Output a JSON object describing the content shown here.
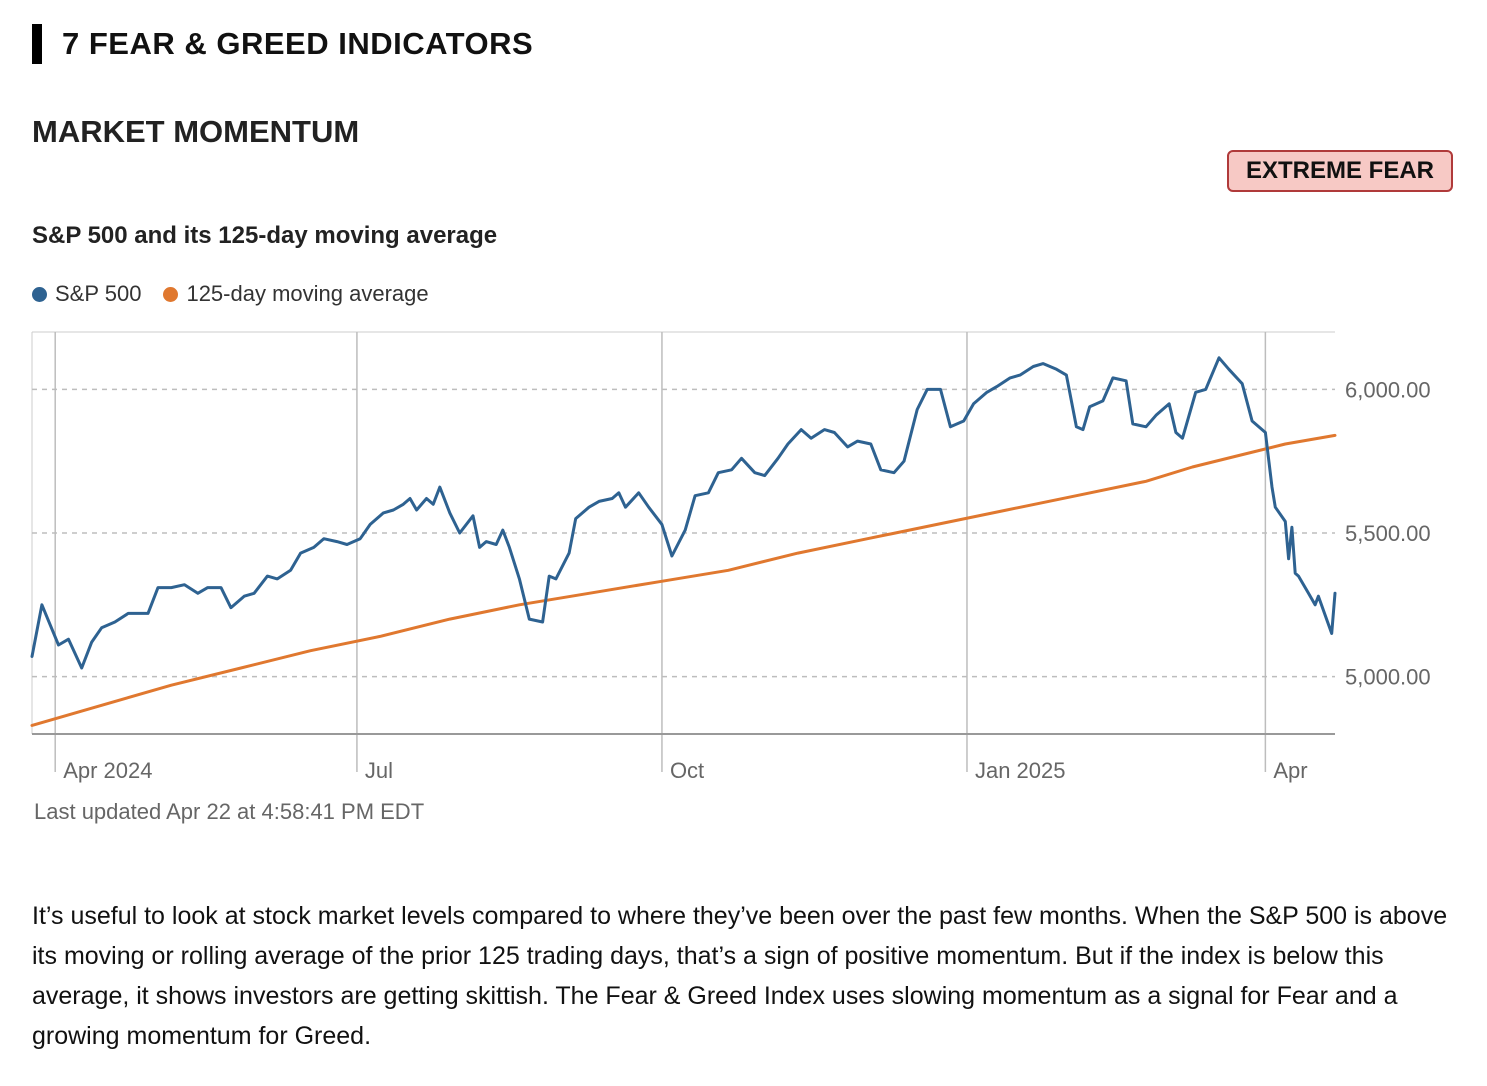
{
  "section": {
    "title": "7 FEAR & GREED INDICATORS"
  },
  "indicator": {
    "title": "MARKET MOMENTUM",
    "rating": "EXTREME FEAR"
  },
  "colors": {
    "sp500": "#2e6291",
    "moving_average": "#e0782f",
    "badge_bg": "#f7c9c5",
    "badge_border": "#b03a3a"
  },
  "chart_data": {
    "type": "line",
    "title": "S&P 500 and its 125-day moving average",
    "x_tick_labels": [
      "Apr 2024",
      "Jul",
      "Oct",
      "Jan 2025",
      "Apr"
    ],
    "x_tick_dates": [
      "2024-04-01",
      "2024-07-01",
      "2024-10-01",
      "2025-01-01",
      "2025-04-01"
    ],
    "y_tick_labels": [
      "5,000.00",
      "5,500.00",
      "6,000.00"
    ],
    "y_ticks": [
      5000,
      5500,
      6000
    ],
    "ylim": [
      4800,
      6200
    ],
    "xlim": [
      "2024-03-25",
      "2025-04-22"
    ],
    "grid": true,
    "y_axis_side": "right",
    "legend": "top-left",
    "series": [
      {
        "name": "S&P 500",
        "points": [
          [
            "2024-03-25",
            5070
          ],
          [
            "2024-03-28",
            5250
          ],
          [
            "2024-04-02",
            5110
          ],
          [
            "2024-04-05",
            5130
          ],
          [
            "2024-04-09",
            5030
          ],
          [
            "2024-04-12",
            5120
          ],
          [
            "2024-04-15",
            5170
          ],
          [
            "2024-04-19",
            5190
          ],
          [
            "2024-04-23",
            5220
          ],
          [
            "2024-04-29",
            5220
          ],
          [
            "2024-05-02",
            5310
          ],
          [
            "2024-05-06",
            5310
          ],
          [
            "2024-05-10",
            5320
          ],
          [
            "2024-05-14",
            5290
          ],
          [
            "2024-05-17",
            5310
          ],
          [
            "2024-05-21",
            5310
          ],
          [
            "2024-05-24",
            5240
          ],
          [
            "2024-05-28",
            5280
          ],
          [
            "2024-05-31",
            5290
          ],
          [
            "2024-06-04",
            5350
          ],
          [
            "2024-06-07",
            5340
          ],
          [
            "2024-06-11",
            5370
          ],
          [
            "2024-06-14",
            5430
          ],
          [
            "2024-06-18",
            5450
          ],
          [
            "2024-06-21",
            5480
          ],
          [
            "2024-06-25",
            5470
          ],
          [
            "2024-06-28",
            5460
          ],
          [
            "2024-07-02",
            5480
          ],
          [
            "2024-07-05",
            5530
          ],
          [
            "2024-07-09",
            5570
          ],
          [
            "2024-07-12",
            5580
          ],
          [
            "2024-07-15",
            5600
          ],
          [
            "2024-07-17",
            5620
          ],
          [
            "2024-07-19",
            5580
          ],
          [
            "2024-07-22",
            5620
          ],
          [
            "2024-07-24",
            5600
          ],
          [
            "2024-07-26",
            5660
          ],
          [
            "2024-07-29",
            5570
          ],
          [
            "2024-08-01",
            5500
          ],
          [
            "2024-08-05",
            5560
          ],
          [
            "2024-08-07",
            5450
          ],
          [
            "2024-08-09",
            5470
          ],
          [
            "2024-08-12",
            5460
          ],
          [
            "2024-08-14",
            5510
          ],
          [
            "2024-08-16",
            5450
          ],
          [
            "2024-08-19",
            5340
          ],
          [
            "2024-08-22",
            5200
          ],
          [
            "2024-08-26",
            5190
          ],
          [
            "2024-08-28",
            5350
          ],
          [
            "2024-08-30",
            5340
          ],
          [
            "2024-09-03",
            5430
          ],
          [
            "2024-09-05",
            5550
          ],
          [
            "2024-09-09",
            5590
          ],
          [
            "2024-09-12",
            5610
          ],
          [
            "2024-09-16",
            5620
          ],
          [
            "2024-09-18",
            5640
          ],
          [
            "2024-09-20",
            5590
          ],
          [
            "2024-09-24",
            5640
          ],
          [
            "2024-09-27",
            5590
          ],
          [
            "2024-10-01",
            5530
          ],
          [
            "2024-10-04",
            5420
          ],
          [
            "2024-10-08",
            5510
          ],
          [
            "2024-10-11",
            5630
          ],
          [
            "2024-10-15",
            5640
          ],
          [
            "2024-10-18",
            5710
          ],
          [
            "2024-10-22",
            5720
          ],
          [
            "2024-10-25",
            5760
          ],
          [
            "2024-10-29",
            5710
          ],
          [
            "2024-11-01",
            5700
          ],
          [
            "2024-11-05",
            5760
          ],
          [
            "2024-11-08",
            5810
          ],
          [
            "2024-11-12",
            5860
          ],
          [
            "2024-11-15",
            5830
          ],
          [
            "2024-11-19",
            5860
          ],
          [
            "2024-11-22",
            5850
          ],
          [
            "2024-11-26",
            5800
          ],
          [
            "2024-11-29",
            5820
          ],
          [
            "2024-12-03",
            5810
          ],
          [
            "2024-12-06",
            5720
          ],
          [
            "2024-12-10",
            5710
          ],
          [
            "2024-12-13",
            5750
          ],
          [
            "2024-12-17",
            5930
          ],
          [
            "2024-12-20",
            6000
          ],
          [
            "2024-12-24",
            6000
          ],
          [
            "2024-12-27",
            5870
          ],
          [
            "2024-12-31",
            5890
          ],
          [
            "2025-01-03",
            5950
          ],
          [
            "2025-01-07",
            5990
          ],
          [
            "2025-01-10",
            6010
          ],
          [
            "2025-01-14",
            6040
          ],
          [
            "2025-01-17",
            6050
          ],
          [
            "2025-01-21",
            6080
          ],
          [
            "2025-01-24",
            6090
          ],
          [
            "2025-01-28",
            6070
          ],
          [
            "2025-01-31",
            6050
          ],
          [
            "2025-02-03",
            5870
          ],
          [
            "2025-02-05",
            5860
          ],
          [
            "2025-02-07",
            5940
          ],
          [
            "2025-02-11",
            5960
          ],
          [
            "2025-02-14",
            6040
          ],
          [
            "2025-02-18",
            6030
          ],
          [
            "2025-02-20",
            5880
          ],
          [
            "2025-02-24",
            5870
          ],
          [
            "2025-02-27",
            5910
          ],
          [
            "2025-03-03",
            5950
          ],
          [
            "2025-03-05",
            5850
          ],
          [
            "2025-03-07",
            5830
          ],
          [
            "2025-03-11",
            5990
          ],
          [
            "2025-03-14",
            6000
          ],
          [
            "2025-03-18",
            6110
          ],
          [
            "2025-03-21",
            6070
          ],
          [
            "2025-03-25",
            6020
          ],
          [
            "2025-03-28",
            5890
          ],
          [
            "2025-04-01",
            5850
          ],
          [
            "2025-04-03",
            5660
          ],
          [
            "2025-04-04",
            5590
          ],
          [
            "2025-04-07",
            5540
          ],
          [
            "2025-04-08",
            5410
          ],
          [
            "2025-04-09",
            5520
          ],
          [
            "2025-04-10",
            5360
          ],
          [
            "2025-04-11",
            5350
          ],
          [
            "2025-04-14",
            5290
          ],
          [
            "2025-04-15",
            5270
          ],
          [
            "2025-04-16",
            5250
          ],
          [
            "2025-04-17",
            5280
          ],
          [
            "2025-04-21",
            5150
          ],
          [
            "2025-04-22",
            5290
          ]
        ]
      },
      {
        "name": "125-day moving average",
        "points": [
          [
            "2024-03-25",
            4830
          ],
          [
            "2024-04-15",
            4900
          ],
          [
            "2024-05-06",
            4970
          ],
          [
            "2024-05-27",
            5030
          ],
          [
            "2024-06-17",
            5090
          ],
          [
            "2024-07-08",
            5140
          ],
          [
            "2024-07-29",
            5200
          ],
          [
            "2024-08-19",
            5250
          ],
          [
            "2024-09-09",
            5290
          ],
          [
            "2024-09-30",
            5330
          ],
          [
            "2024-10-21",
            5370
          ],
          [
            "2024-11-11",
            5430
          ],
          [
            "2024-12-02",
            5480
          ],
          [
            "2024-12-23",
            5530
          ],
          [
            "2025-01-13",
            5580
          ],
          [
            "2025-02-03",
            5630
          ],
          [
            "2025-02-24",
            5680
          ],
          [
            "2025-03-10",
            5730
          ],
          [
            "2025-03-24",
            5770
          ],
          [
            "2025-04-07",
            5810
          ],
          [
            "2025-04-22",
            5840
          ]
        ]
      }
    ]
  },
  "legend_items": [
    "S&P 500",
    "125-day moving average"
  ],
  "last_updated": "Last updated Apr 22 at 4:58:41 PM EDT",
  "description": "It’s useful to look at stock market levels compared to where they’ve been over the past few months. When the S&P 500 is above its moving or rolling average of the prior 125 trading days, that’s a sign of positive momentum. But if the index is below this average, it shows investors are getting skittish. The Fear & Greed Index uses slowing momentum as a signal for Fear and a growing momentum for Greed."
}
